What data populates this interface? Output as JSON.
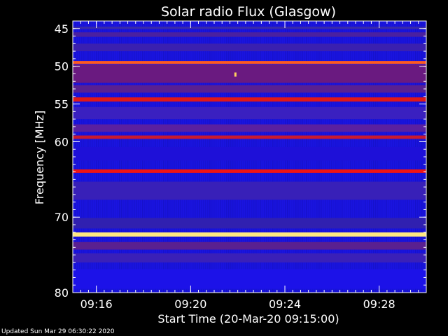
{
  "chart_data": {
    "type": "heatmap",
    "title": "Solar radio Flux (Glasgow)",
    "xlabel": "Start Time (20-Mar-20 09:15:00)",
    "ylabel": "Frequency [MHz]",
    "x_range_minutes": [
      0,
      15
    ],
    "x_ticks": [
      {
        "minute": 1,
        "label": "09:16"
      },
      {
        "minute": 5,
        "label": "09:20"
      },
      {
        "minute": 9,
        "label": "09:24"
      },
      {
        "minute": 13,
        "label": "09:28"
      }
    ],
    "ylim": [
      44,
      80
    ],
    "y_ticks": [
      {
        "value": 45,
        "label": "45"
      },
      {
        "value": 50,
        "label": "50"
      },
      {
        "value": 55,
        "label": "55"
      },
      {
        "value": 60,
        "label": "60"
      },
      {
        "value": 70,
        "label": "70"
      },
      {
        "value": 80,
        "label": "80"
      }
    ],
    "background_color": "#1a14e0",
    "bands": [
      {
        "mhz": 44.9,
        "width": 0.3,
        "color": "#3a2aa8"
      },
      {
        "mhz": 45.8,
        "width": 0.6,
        "color": "#4a20a0"
      },
      {
        "mhz": 47.5,
        "width": 1.0,
        "color": "#3a20b0"
      },
      {
        "mhz": 49.5,
        "width": 0.4,
        "color": "#ff5a20"
      },
      {
        "mhz": 51.0,
        "width": 2.4,
        "color": "#6a1a80"
      },
      {
        "mhz": 53.0,
        "width": 1.0,
        "color": "#5a2090"
      },
      {
        "mhz": 54.4,
        "width": 0.55,
        "color": "#e01818"
      },
      {
        "mhz": 56.2,
        "width": 1.6,
        "color": "#3a20c0"
      },
      {
        "mhz": 58.2,
        "width": 1.0,
        "color": "#5a20a0"
      },
      {
        "mhz": 59.4,
        "width": 0.45,
        "color": "#c81a30"
      },
      {
        "mhz": 61.6,
        "width": 1.8,
        "color": "#1e10d8"
      },
      {
        "mhz": 63.9,
        "width": 0.45,
        "color": "#f01414"
      },
      {
        "mhz": 66.5,
        "width": 2.4,
        "color": "#3820b8"
      },
      {
        "mhz": 70.8,
        "width": 1.4,
        "color": "#3020b0"
      },
      {
        "mhz": 72.3,
        "width": 0.55,
        "color": "#ffe880"
      },
      {
        "mhz": 73.8,
        "width": 1.0,
        "color": "#5a2090"
      },
      {
        "mhz": 75.4,
        "width": 1.2,
        "color": "#3a20b8"
      },
      {
        "mhz": 78.2,
        "width": 2.6,
        "color": "#1c12e8"
      }
    ],
    "hot_spots": [
      {
        "minute": 6.9,
        "mhz": 51.1,
        "color": "#ffd060"
      }
    ]
  },
  "footer": {
    "updated": "Updated Sun Mar 29 06:30:22 2020"
  }
}
